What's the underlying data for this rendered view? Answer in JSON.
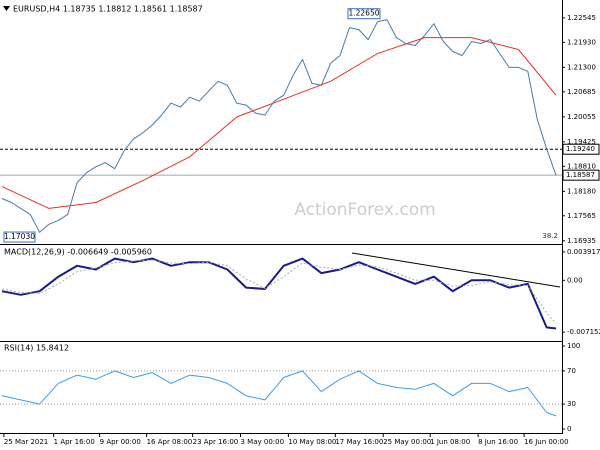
{
  "chart_data": [
    {
      "type": "line",
      "title": "EURUSD,H4 1.18735 1.18812 1.18561 1.18587",
      "watermark": "ActionForex.com",
      "xlim": [
        0,
        59
      ],
      "ylim": [
        1.1688,
        1.2292
      ],
      "yticks": [
        {
          "value": 1.22545,
          "label": "1.22545"
        },
        {
          "value": 1.2193,
          "label": "1.21930"
        },
        {
          "value": 1.213,
          "label": "1.21300"
        },
        {
          "value": 1.20685,
          "label": "1.20685"
        },
        {
          "value": 1.20055,
          "label": "1.20055"
        },
        {
          "value": 1.19425,
          "label": "1.19425"
        },
        {
          "value": 1.1881,
          "label": "1.18810"
        },
        {
          "value": 1.1818,
          "label": "1.18180"
        },
        {
          "value": 1.17565,
          "label": "1.17565"
        },
        {
          "value": 1.16935,
          "label": "1.16935"
        }
      ],
      "grid": false,
      "series": [
        {
          "color": "#4b7aa0",
          "values": [
            1.18,
            1.179,
            1.1775,
            1.176,
            1.1715,
            1.1735,
            1.1745,
            1.176,
            1.184,
            1.1865,
            1.188,
            1.189,
            1.1875,
            1.192,
            1.195,
            1.1965,
            1.1985,
            1.201,
            1.204,
            1.203,
            1.2055,
            1.2045,
            1.207,
            1.2095,
            1.2085,
            1.204,
            1.2035,
            1.2015,
            1.201,
            1.2045,
            1.206,
            1.211,
            1.215,
            1.209,
            1.2085,
            1.214,
            1.216,
            1.223,
            1.2225,
            1.22,
            1.2245,
            1.225,
            1.2205,
            1.219,
            1.2185,
            1.221,
            1.224,
            1.2195,
            1.217,
            1.216,
            1.2195,
            1.219,
            1.22,
            1.2165,
            1.213,
            1.213,
            1.212,
            1.2,
            1.1925,
            1.18587
          ]
        },
        {
          "color": "#e8302a",
          "x": [
            0,
            5,
            10,
            15,
            20,
            25,
            30,
            35,
            40,
            45,
            50,
            55,
            59
          ],
          "values": [
            1.183,
            1.1775,
            1.179,
            1.1845,
            1.1905,
            1.2005,
            1.205,
            1.2095,
            1.2165,
            1.2205,
            1.2205,
            1.2175,
            1.206
          ]
        }
      ],
      "levels": [
        {
          "value": 1.1924,
          "label": "1.19240"
        }
      ],
      "current_price": {
        "value": 1.18587,
        "label": "1.18587"
      },
      "high_label": {
        "value": 1.2265,
        "label": "1.22650"
      },
      "low_label": {
        "value": 1.1703,
        "label": "1.17030"
      },
      "fib_label": "38.2"
    },
    {
      "type": "line",
      "title": "MACD(12,26,9) -0.006649 -0.005960",
      "xlim": [
        0,
        59
      ],
      "ylim": [
        -0.0081,
        0.0046
      ],
      "yticks": [
        0.003917,
        {
          "value": 0,
          "label": "0.00"
        },
        -0.007152
      ],
      "grid": false,
      "series": [
        {
          "color": "#1a1a8c",
          "x": [
            0,
            2,
            4,
            6,
            8,
            10,
            12,
            14,
            16,
            18,
            20,
            22,
            24,
            26,
            28,
            30,
            32,
            34,
            36,
            38,
            40,
            42,
            44,
            46,
            48,
            50,
            52,
            54,
            56,
            58,
            59
          ],
          "values": [
            -0.0015,
            -0.002,
            -0.0015,
            0.0005,
            0.002,
            0.0015,
            0.003,
            0.0025,
            0.003,
            0.002,
            0.0025,
            0.0025,
            0.0015,
            -0.001,
            -0.0012,
            0.002,
            0.003,
            0.001,
            0.0015,
            0.0025,
            0.0015,
            0.0005,
            -0.0005,
            0.0005,
            -0.0015,
            0,
            0,
            -0.001,
            -0.0005,
            -0.0065,
            -0.006649
          ]
        },
        {
          "color": "#a8a8a8",
          "dashed": true,
          "x": [
            0,
            2,
            4,
            6,
            8,
            10,
            12,
            14,
            16,
            18,
            20,
            22,
            24,
            26,
            28,
            30,
            32,
            34,
            36,
            38,
            40,
            42,
            44,
            46,
            48,
            50,
            52,
            54,
            56,
            58,
            59
          ],
          "values": [
            -0.0012,
            -0.0017,
            -0.0018,
            -0.0005,
            0.0012,
            0.0017,
            0.0024,
            0.0027,
            0.0028,
            0.0024,
            0.0023,
            0.0025,
            0.002,
            0.0002,
            -0.0011,
            0.0005,
            0.0024,
            0.0018,
            0.0015,
            0.0021,
            0.0019,
            0.001,
            0,
            0,
            -0.0008,
            -0.0007,
            -0.0002,
            -0.0006,
            -0.0007,
            -0.0045,
            -0.00596
          ]
        }
      ]
    },
    {
      "type": "line",
      "title": "RSI(14) 15.8412",
      "xlim": [
        0,
        59
      ],
      "ylim": [
        0,
        100
      ],
      "yticks": [
        100,
        70,
        30,
        0
      ],
      "grid": true,
      "xticks": [
        {
          "value": 0.2,
          "label": "25 Mar 2021"
        },
        {
          "value": 5.5,
          "label": "1 Apr 16:00"
        },
        {
          "value": 10.4,
          "label": "9 Apr 00:00"
        },
        {
          "value": 15.4,
          "label": "16 Apr 08:00"
        },
        {
          "value": 20.3,
          "label": "23 Apr 16:00"
        },
        {
          "value": 25.4,
          "label": "3 May 00:00"
        },
        {
          "value": 30.5,
          "label": "10 May 08:00"
        },
        {
          "value": 35.5,
          "label": "17 May 16:00"
        },
        {
          "value": 40.6,
          "label": "25 May 00:00"
        },
        {
          "value": 45.6,
          "label": "1 Jun 08:00"
        },
        {
          "value": 50.7,
          "label": "8 Jun 16:00"
        },
        {
          "value": 55.6,
          "label": "16 Jun 00:00"
        }
      ],
      "series": [
        {
          "color": "#3a9ee8",
          "x": [
            0,
            2,
            4,
            6,
            8,
            10,
            12,
            14,
            16,
            18,
            20,
            22,
            24,
            26,
            28,
            30,
            32,
            34,
            36,
            38,
            40,
            42,
            44,
            46,
            48,
            50,
            52,
            54,
            56,
            58,
            59
          ],
          "values": [
            40,
            35,
            30,
            55,
            65,
            60,
            70,
            62,
            68,
            55,
            65,
            62,
            55,
            40,
            35,
            62,
            70,
            45,
            60,
            70,
            55,
            50,
            48,
            55,
            40,
            55,
            55,
            45,
            50,
            20,
            15.8412
          ]
        }
      ]
    }
  ]
}
